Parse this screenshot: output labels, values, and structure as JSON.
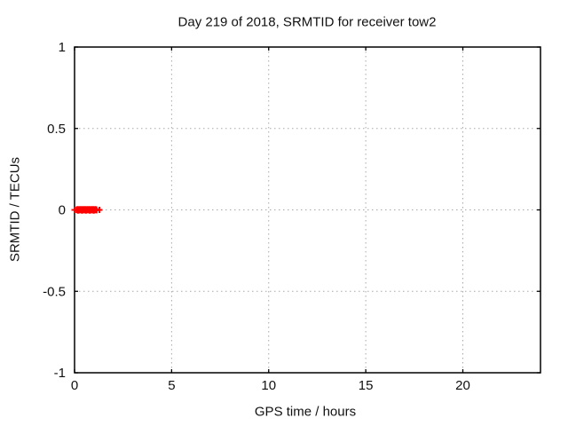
{
  "chart_data": {
    "type": "scatter",
    "title": "Day 219 of 2018, SRMTID for receiver tow2",
    "xlabel": "GPS time / hours",
    "ylabel": "SRMTID / TECUs",
    "xlim": [
      0,
      24
    ],
    "ylim": [
      -1,
      1
    ],
    "xticks": [
      0,
      5,
      10,
      15,
      20
    ],
    "xtick_labels": [
      "0",
      "5",
      "10",
      "15",
      "20"
    ],
    "yticks": [
      1,
      0.5,
      0,
      -0.5,
      -1
    ],
    "ytick_labels": [
      "1",
      "0.5",
      "0",
      "-0.5",
      "-1"
    ],
    "grid": true,
    "grid_style": "dotted",
    "grid_color": "#a8a8a8",
    "border_color": "#000000",
    "legend": "none",
    "series": [
      {
        "name": "SRMTID",
        "marker": "plus",
        "color": "#ff0000",
        "points": [
          [
            0.0,
            0.0
          ],
          [
            0.1,
            0.0
          ],
          [
            0.12,
            0.003
          ],
          [
            0.14,
            -0.002
          ],
          [
            0.16,
            0.004
          ],
          [
            0.18,
            -0.004
          ],
          [
            0.2,
            0.002
          ],
          [
            0.22,
            -0.003
          ],
          [
            0.24,
            0.001
          ],
          [
            0.26,
            0.004
          ],
          [
            0.28,
            -0.001
          ],
          [
            0.3,
            0.0
          ],
          [
            0.32,
            0.003
          ],
          [
            0.34,
            -0.002
          ],
          [
            0.36,
            0.004
          ],
          [
            0.38,
            -0.004
          ],
          [
            0.4,
            0.002
          ],
          [
            0.42,
            -0.003
          ],
          [
            0.44,
            0.001
          ],
          [
            0.46,
            0.004
          ],
          [
            0.48,
            -0.001
          ],
          [
            0.5,
            0.0
          ],
          [
            0.52,
            0.003
          ],
          [
            0.54,
            -0.002
          ],
          [
            0.56,
            0.004
          ],
          [
            0.58,
            -0.004
          ],
          [
            0.6,
            0.002
          ],
          [
            0.62,
            -0.003
          ],
          [
            0.64,
            0.001
          ],
          [
            0.66,
            0.004
          ],
          [
            0.68,
            -0.001
          ],
          [
            0.7,
            0.0
          ],
          [
            0.72,
            0.003
          ],
          [
            0.74,
            -0.002
          ],
          [
            0.76,
            0.004
          ],
          [
            0.78,
            -0.004
          ],
          [
            0.8,
            0.002
          ],
          [
            0.82,
            -0.003
          ],
          [
            0.84,
            0.001
          ],
          [
            0.86,
            0.004
          ],
          [
            0.88,
            -0.001
          ],
          [
            0.9,
            0.0
          ],
          [
            0.92,
            0.003
          ],
          [
            0.94,
            -0.002
          ],
          [
            0.96,
            0.004
          ],
          [
            0.98,
            -0.004
          ],
          [
            1.0,
            0.002
          ],
          [
            1.02,
            -0.003
          ],
          [
            1.04,
            0.001
          ],
          [
            1.06,
            0.004
          ],
          [
            1.08,
            -0.001
          ],
          [
            1.1,
            0.0
          ],
          [
            1.12,
            0.003
          ],
          [
            1.14,
            -0.002
          ],
          [
            1.28,
            0.0
          ]
        ]
      }
    ]
  }
}
